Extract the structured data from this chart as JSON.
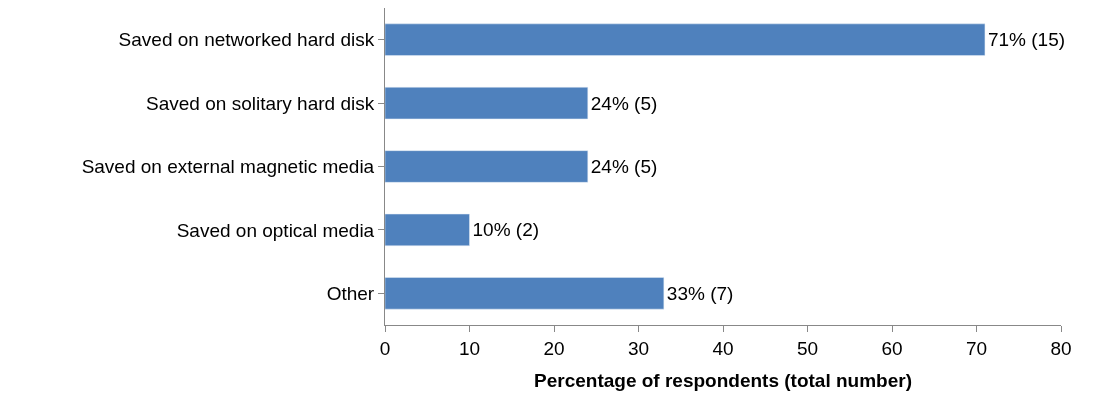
{
  "chart_data": {
    "type": "bar",
    "orientation": "horizontal",
    "xlabel": "Percentage of respondents (total number)",
    "categories": [
      "Saved on networked hard disk",
      "Saved on solitary hard disk",
      "Saved on external magnetic media",
      "Saved on optical media",
      "Other"
    ],
    "values": [
      71,
      24,
      24,
      10,
      33
    ],
    "value_labels": [
      "71% (15)",
      "24% (5)",
      "24% (5)",
      "10% (2)",
      "33% (7)"
    ],
    "color": "#4f81bd",
    "xlim": [
      0,
      80
    ],
    "xticks": [
      0,
      10,
      20,
      30,
      40,
      50,
      60,
      70,
      80
    ]
  }
}
